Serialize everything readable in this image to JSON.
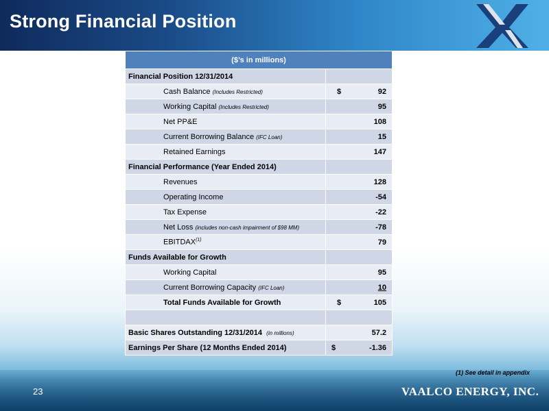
{
  "slide": {
    "title": "Strong Financial Position",
    "page_number": "23",
    "brand": "VAALCO ENERGY, INC.",
    "footnote": "(1)  See detail in appendix"
  },
  "table": {
    "header": "($’s in millions)",
    "sections": {
      "position": {
        "label": "Financial Position  12/31/2014",
        "rows": [
          {
            "label": "Cash Balance",
            "note": "(Includes Restricted)",
            "dollar": "$",
            "value": "92"
          },
          {
            "label": "Working Capital",
            "note": "(Includes Restricted)",
            "value": "95"
          },
          {
            "label": "Net PP&E",
            "value": "108"
          },
          {
            "label": "Current Borrowing Balance",
            "note": "(IFC Loan)",
            "value": "15"
          },
          {
            "label": "Retained Earnings",
            "value": "147"
          }
        ]
      },
      "performance": {
        "label": "Financial Performance (Year Ended 2014)",
        "rows": [
          {
            "label": "Revenues",
            "value": "128"
          },
          {
            "label": "Operating Income",
            "value": "-54"
          },
          {
            "label": "Tax Expense",
            "value": "-22"
          },
          {
            "label": "Net Loss",
            "note": "(includes non-cash impairment of $98 MM)",
            "value": "-78"
          },
          {
            "label": "EBITDAX",
            "sup": "(1)",
            "value": "79"
          }
        ]
      },
      "funds": {
        "label": "Funds Available for Growth",
        "rows": [
          {
            "label": "Working Capital",
            "value": "95"
          },
          {
            "label": "Current Borrowing Capacity",
            "note": "(IFC Loan)",
            "value": "10"
          },
          {
            "label": "Total Funds Available for Growth",
            "dollar": "$",
            "value": "105"
          }
        ]
      }
    },
    "shares": {
      "label": "Basic Shares Outstanding  12/31/2014",
      "note": "(in millions)",
      "value": "57.2"
    },
    "eps": {
      "label": "Earnings Per Share (12 Months Ended 2014)",
      "dollar": "$",
      "value": "-1.36"
    }
  },
  "colors": {
    "header_blue": "#4f81bd",
    "row_dark": "#cfd7e6",
    "row_light": "#e8ecf4",
    "title_bar": "#1a4a86"
  }
}
